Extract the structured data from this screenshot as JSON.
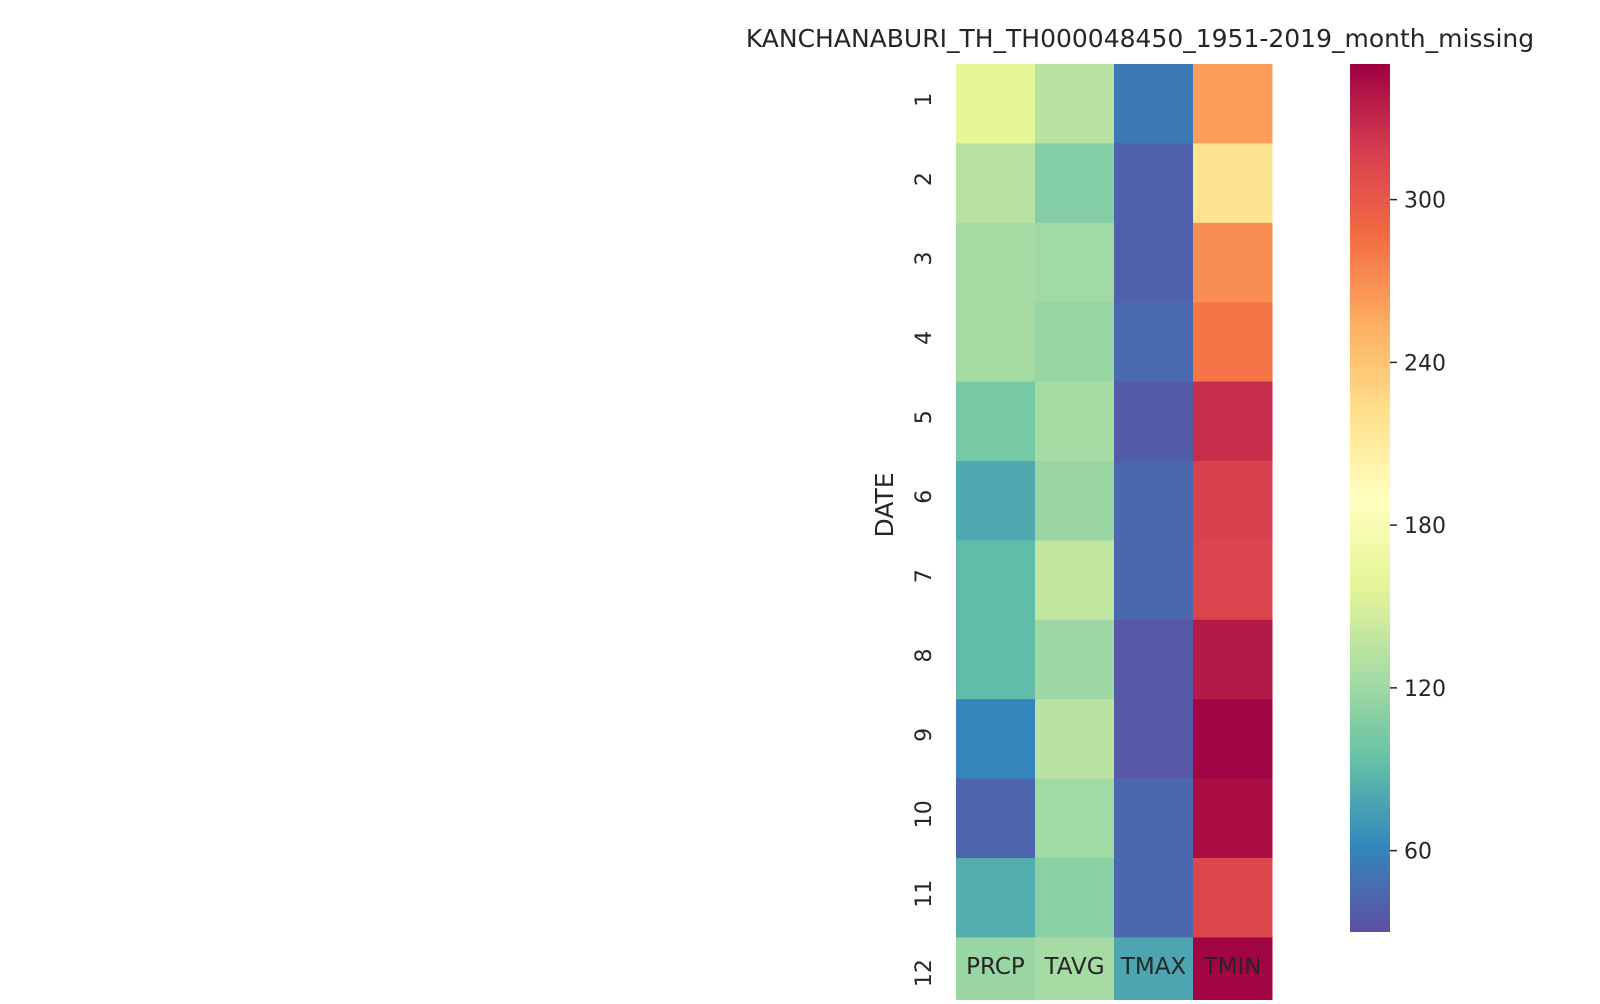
{
  "chart_data": {
    "type": "heatmap",
    "title": "KANCHANABURI_TH_TH000048450_1951-2019_month_missing",
    "xlabel": "",
    "ylabel": "DATE",
    "columns": [
      "PRCP",
      "TAVG",
      "TMAX",
      "TMIN"
    ],
    "rows": [
      "1",
      "2",
      "3",
      "4",
      "5",
      "6",
      "7",
      "8",
      "9",
      "10",
      "11",
      "12"
    ],
    "values": [
      [
        160,
        133,
        53,
        262
      ],
      [
        133,
        108,
        40,
        218
      ],
      [
        124,
        121,
        40,
        270
      ],
      [
        124,
        117,
        45,
        282
      ],
      [
        102,
        124,
        37,
        327
      ],
      [
        80,
        118,
        44,
        315
      ],
      [
        90,
        138,
        44,
        313
      ],
      [
        90,
        120,
        35,
        337
      ],
      [
        60,
        134,
        35,
        348
      ],
      [
        42,
        122,
        44,
        343
      ],
      [
        83,
        110,
        44,
        312
      ],
      [
        118,
        124,
        78,
        348
      ]
    ],
    "colormap": "Spectral_r",
    "colorbar": {
      "vmin": 30,
      "vmax": 350,
      "ticks": [
        60,
        120,
        180,
        240,
        300
      ]
    }
  }
}
